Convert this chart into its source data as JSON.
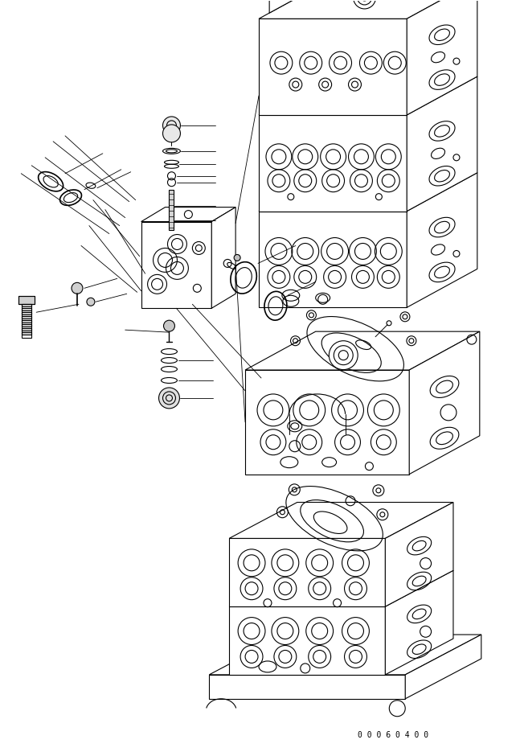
{
  "background_color": "#ffffff",
  "line_color": "#000000",
  "line_width": 0.8,
  "fig_width": 6.47,
  "fig_height": 9.35,
  "watermark_text": "0 0 0 6 0 4 0 0",
  "watermark_fontsize": 7
}
